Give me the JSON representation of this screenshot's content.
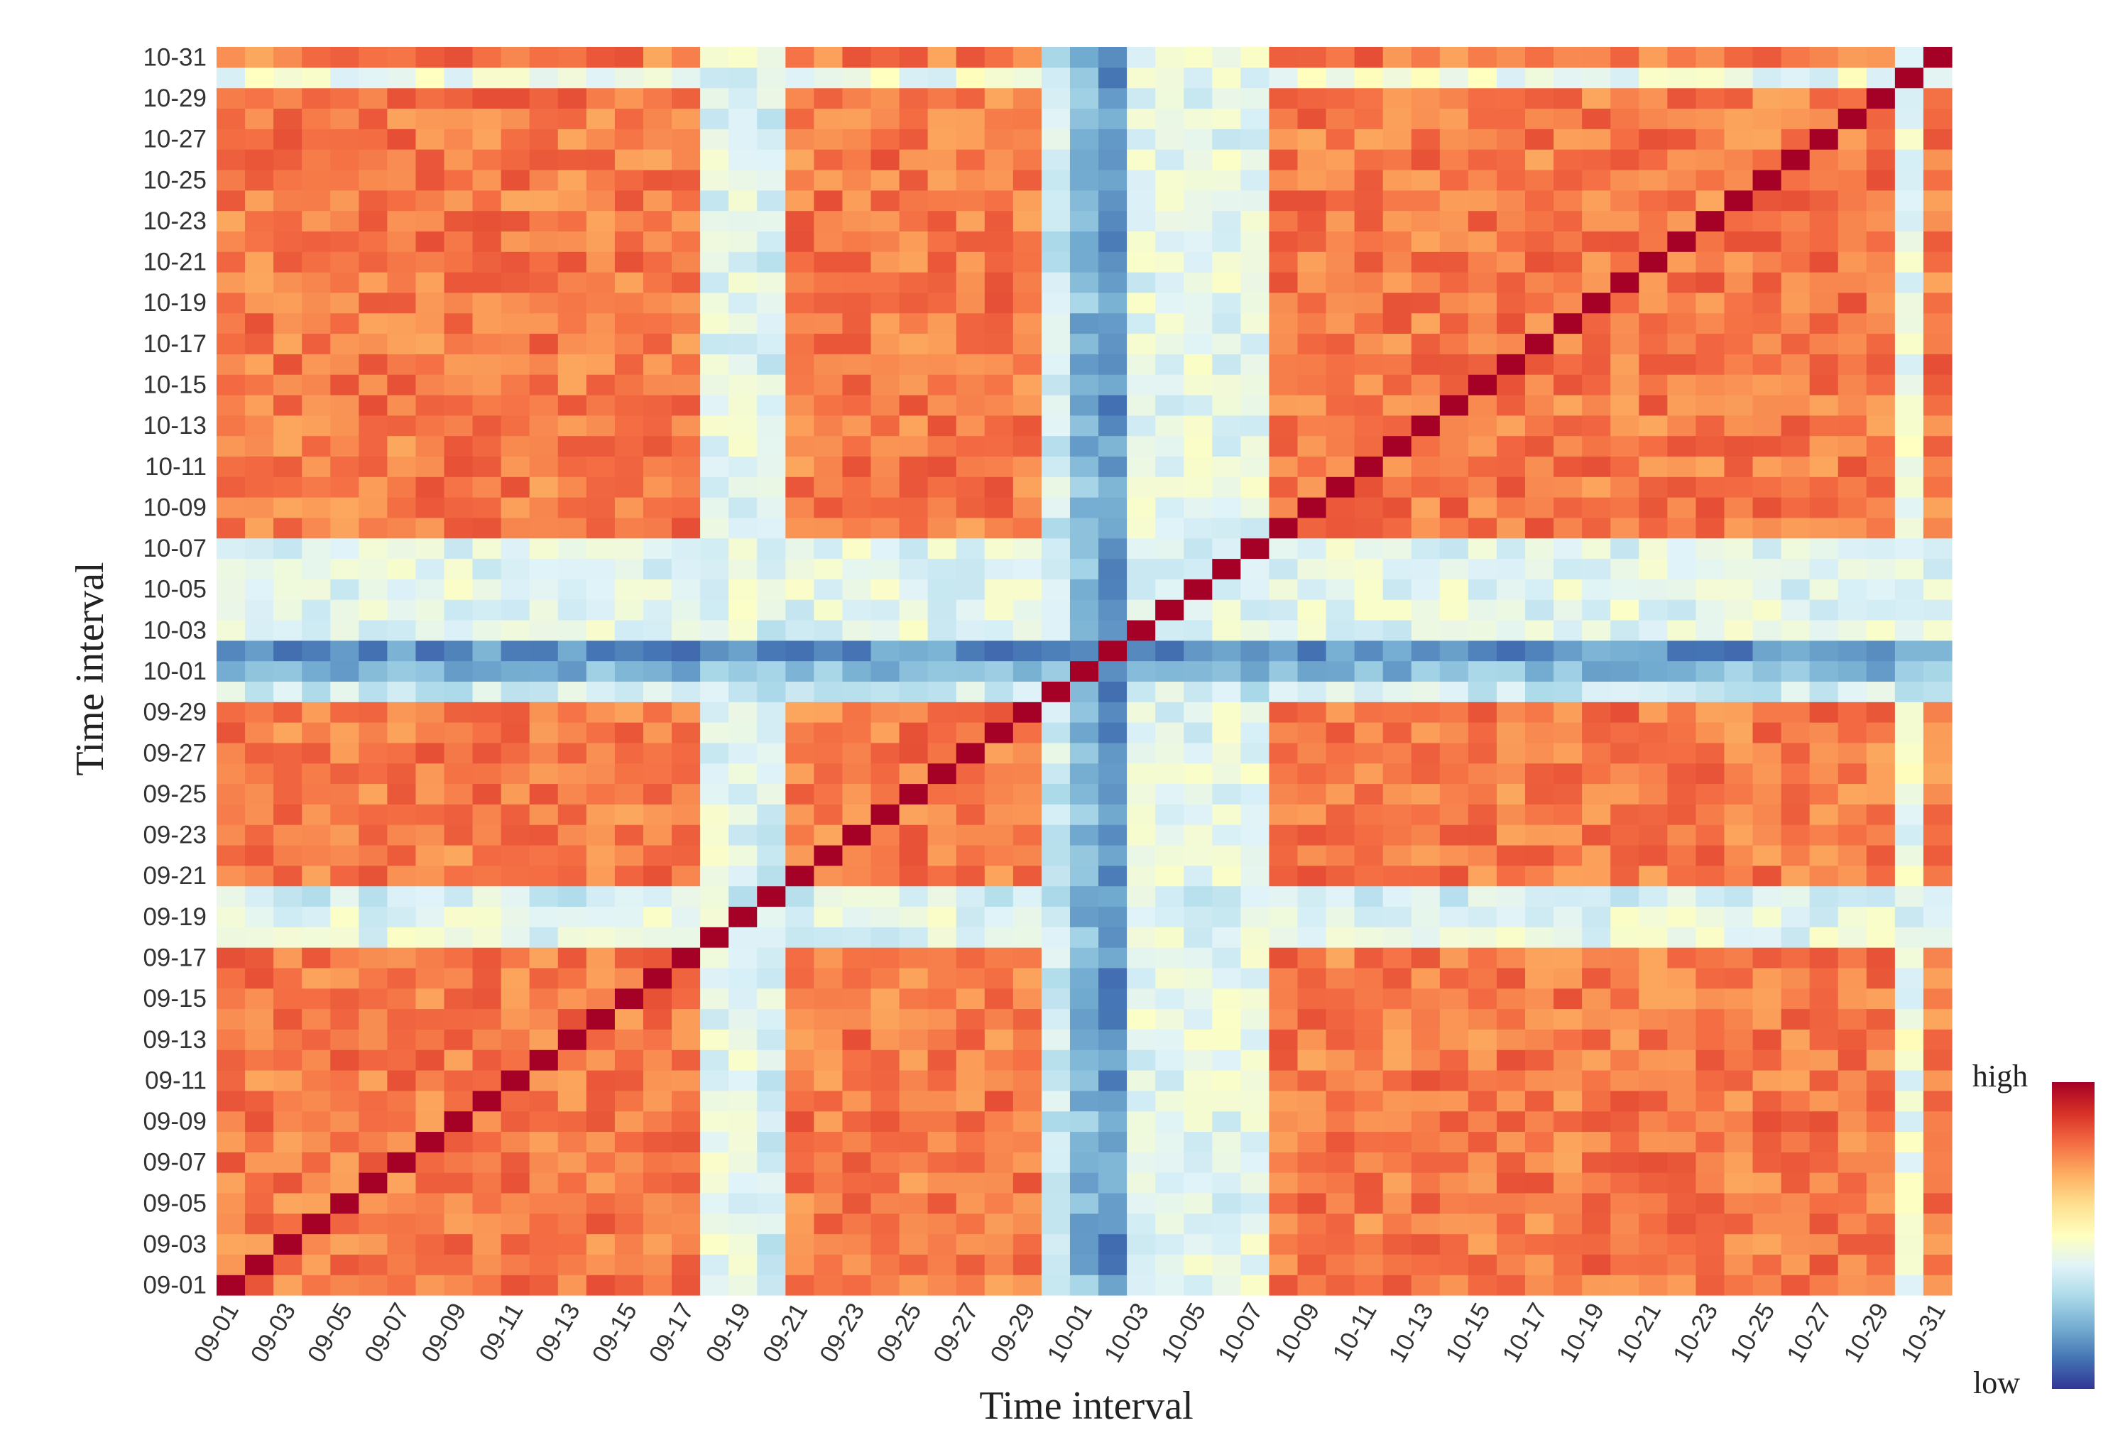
{
  "chart_data": {
    "type": "heatmap",
    "xlabel": "Time interval",
    "ylabel": "Time interval",
    "x": [
      "09-01",
      "09-02",
      "09-03",
      "09-04",
      "09-05",
      "09-06",
      "09-07",
      "09-08",
      "09-09",
      "09-10",
      "09-11",
      "09-12",
      "09-13",
      "09-14",
      "09-15",
      "09-16",
      "09-17",
      "09-18",
      "09-19",
      "09-20",
      "09-21",
      "09-22",
      "09-23",
      "09-24",
      "09-25",
      "09-26",
      "09-27",
      "09-28",
      "09-29",
      "09-30",
      "10-01",
      "10-02",
      "10-03",
      "10-04",
      "10-05",
      "10-06",
      "10-07",
      "10-08",
      "10-09",
      "10-10",
      "10-11",
      "10-12",
      "10-13",
      "10-14",
      "10-15",
      "10-16",
      "10-17",
      "10-18",
      "10-19",
      "10-20",
      "10-21",
      "10-22",
      "10-23",
      "10-24",
      "10-25",
      "10-26",
      "10-27",
      "10-28",
      "10-29",
      "10-30",
      "10-31"
    ],
    "y": [
      "09-01",
      "09-02",
      "09-03",
      "09-04",
      "09-05",
      "09-06",
      "09-07",
      "09-08",
      "09-09",
      "09-10",
      "09-11",
      "09-12",
      "09-13",
      "09-14",
      "09-15",
      "09-16",
      "09-17",
      "09-18",
      "09-19",
      "09-20",
      "09-21",
      "09-22",
      "09-23",
      "09-24",
      "09-25",
      "09-26",
      "09-27",
      "09-28",
      "09-29",
      "09-30",
      "10-01",
      "10-02",
      "10-03",
      "10-04",
      "10-05",
      "10-06",
      "10-07",
      "10-08",
      "10-09",
      "10-10",
      "10-11",
      "10-12",
      "10-13",
      "10-14",
      "10-15",
      "10-16",
      "10-17",
      "10-18",
      "10-19",
      "10-20",
      "10-21",
      "10-22",
      "10-23",
      "10-24",
      "10-25",
      "10-26",
      "10-27",
      "10-28",
      "10-29",
      "10-30",
      "10-31"
    ],
    "x_tick_labels": [
      "09-01",
      "09-03",
      "09-05",
      "09-07",
      "09-09",
      "09-11",
      "09-13",
      "09-15",
      "09-17",
      "09-19",
      "09-21",
      "09-23",
      "09-25",
      "09-27",
      "09-29",
      "10-01",
      "10-03",
      "10-05",
      "10-07",
      "10-09",
      "10-11",
      "10-13",
      "10-15",
      "10-17",
      "10-19",
      "10-21",
      "10-23",
      "10-25",
      "10-27",
      "10-29",
      "10-31"
    ],
    "y_tick_labels": [
      "09-01",
      "09-03",
      "09-05",
      "09-07",
      "09-09",
      "09-11",
      "09-13",
      "09-15",
      "09-17",
      "09-19",
      "09-21",
      "09-23",
      "09-25",
      "09-27",
      "09-29",
      "10-01",
      "10-03",
      "10-05",
      "10-07",
      "10-09",
      "10-11",
      "10-13",
      "10-15",
      "10-17",
      "10-19",
      "10-21",
      "10-23",
      "10-25",
      "10-27",
      "10-29",
      "10-31"
    ],
    "scale": "relative similarity, 0 = low, 1 = high",
    "diagonal_value": 1.0,
    "background_level": 0.76,
    "low_similarity_days": [
      {
        "date": "09-18",
        "level": 0.55
      },
      {
        "date": "09-19",
        "level": 0.55
      },
      {
        "date": "09-20",
        "level": 0.5
      },
      {
        "date": "09-30",
        "level": 0.48
      },
      {
        "date": "10-01",
        "level": 0.3
      },
      {
        "date": "10-02",
        "level": 0.2
      },
      {
        "date": "10-03",
        "level": 0.55
      },
      {
        "date": "10-04",
        "level": 0.55
      },
      {
        "date": "10-05",
        "level": 0.55
      },
      {
        "date": "10-06",
        "level": 0.55
      },
      {
        "date": "10-07",
        "level": 0.55
      },
      {
        "date": "10-30",
        "level": 0.58
      }
    ],
    "colorbar": {
      "high_label": "high",
      "low_label": "low",
      "colors": [
        "#a50026",
        "#d73027",
        "#f46d43",
        "#fdae61",
        "#fee090",
        "#ffffbf",
        "#e0f3f8",
        "#abd9e9",
        "#74add1",
        "#4575b4",
        "#313695"
      ]
    }
  }
}
